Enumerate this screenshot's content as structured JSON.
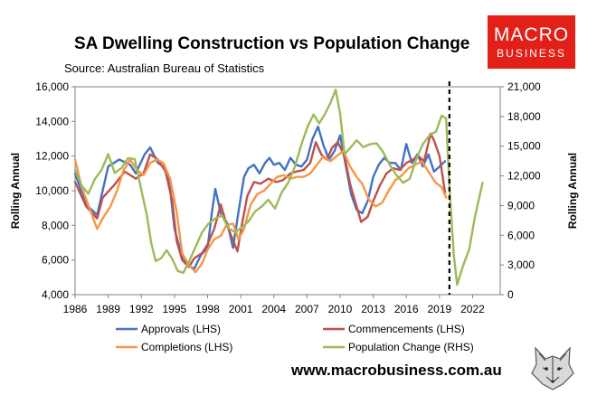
{
  "title": "SA Dwelling Construction vs Population Change",
  "subtitle": "Source: Australian Bureau of Statistics",
  "logo": {
    "line1": "MACRO",
    "line2": "BUSINESS",
    "icon": "wolf-head-icon"
  },
  "website": "www.macrobusiness.com.au",
  "colors": {
    "approvals": "#4472c4",
    "commencements": "#c0504d",
    "completions": "#f79646",
    "population": "#9bbb59",
    "logo_bg": "#e32018"
  },
  "chart_data": {
    "type": "line",
    "xlim": [
      1986,
      2024.5
    ],
    "x_ticks": [
      "1986",
      "1989",
      "1992",
      "1995",
      "1998",
      "2001",
      "2004",
      "2007",
      "2010",
      "2013",
      "2016",
      "2019",
      "2022"
    ],
    "ylabel_left": "Rolling Annual",
    "ylabel_right": "Rolling Annual",
    "ylim_left": [
      4000,
      16000
    ],
    "ylim_right": [
      0,
      21000
    ],
    "y_ticks_left": [
      "4,000",
      "6,000",
      "8,000",
      "10,000",
      "12,000",
      "14,000",
      "16,000"
    ],
    "y_ticks_right": [
      "0",
      "3,000",
      "6,000",
      "9,000",
      "12,000",
      "15,000",
      "18,000",
      "21,000"
    ],
    "vline_x": 2019.9,
    "series": [
      {
        "name": "Approvals (LHS)",
        "key": "approvals",
        "axis": "left",
        "points": [
          [
            1986,
            11000
          ],
          [
            1987,
            9200
          ],
          [
            1988,
            8600
          ],
          [
            1989,
            11400
          ],
          [
            1990,
            11800
          ],
          [
            1991,
            11500
          ],
          [
            1991.5,
            11000
          ],
          [
            1992.3,
            12100
          ],
          [
            1992.8,
            12500
          ],
          [
            1993.5,
            11600
          ],
          [
            1994,
            11400
          ],
          [
            1994.5,
            10700
          ],
          [
            1995,
            7800
          ],
          [
            1995.6,
            6400
          ],
          [
            1996.2,
            5700
          ],
          [
            1996.8,
            5500
          ],
          [
            1997.4,
            6300
          ],
          [
            1998,
            6700
          ],
          [
            1998.4,
            8800
          ],
          [
            1998.7,
            10100
          ],
          [
            1999.2,
            8700
          ],
          [
            1999.8,
            8100
          ],
          [
            2000.3,
            6700
          ],
          [
            2000.8,
            8800
          ],
          [
            2001.3,
            10800
          ],
          [
            2001.7,
            11300
          ],
          [
            2002.2,
            11500
          ],
          [
            2002.7,
            11000
          ],
          [
            2003.2,
            11600
          ],
          [
            2003.6,
            11900
          ],
          [
            2004,
            11500
          ],
          [
            2004.5,
            11600
          ],
          [
            2005,
            11200
          ],
          [
            2005.5,
            11900
          ],
          [
            2006,
            11500
          ],
          [
            2006.5,
            11400
          ],
          [
            2007,
            11800
          ],
          [
            2007.5,
            13000
          ],
          [
            2008,
            13700
          ],
          [
            2008.5,
            12600
          ],
          [
            2009,
            11800
          ],
          [
            2009.5,
            12300
          ],
          [
            2010,
            13200
          ],
          [
            2010.5,
            11500
          ],
          [
            2011,
            9800
          ],
          [
            2011.5,
            8900
          ],
          [
            2012,
            8700
          ],
          [
            2012.5,
            9400
          ],
          [
            2013,
            10800
          ],
          [
            2013.5,
            11500
          ],
          [
            2014,
            11900
          ],
          [
            2014.5,
            11600
          ],
          [
            2015,
            11600
          ],
          [
            2015.5,
            11200
          ],
          [
            2016,
            12700
          ],
          [
            2016.5,
            11600
          ],
          [
            2017,
            12100
          ],
          [
            2017.5,
            11400
          ],
          [
            2018,
            12100
          ],
          [
            2018.5,
            11100
          ],
          [
            2019,
            11400
          ],
          [
            2019.5,
            11700
          ]
        ]
      },
      {
        "name": "Commencements (LHS)",
        "key": "commencements",
        "axis": "left",
        "points": [
          [
            1986,
            10500
          ],
          [
            1987,
            9100
          ],
          [
            1988,
            8400
          ],
          [
            1988.5,
            9600
          ],
          [
            1989.5,
            10300
          ],
          [
            1990.5,
            11100
          ],
          [
            1991.5,
            10700
          ],
          [
            1992.2,
            11000
          ],
          [
            1992.8,
            12100
          ],
          [
            1993.5,
            11800
          ],
          [
            1994.2,
            11100
          ],
          [
            1994.8,
            9400
          ],
          [
            1995.2,
            7100
          ],
          [
            1995.7,
            6000
          ],
          [
            1996.3,
            5600
          ],
          [
            1996.8,
            6100
          ],
          [
            1997.5,
            6400
          ],
          [
            1998,
            6900
          ],
          [
            1998.6,
            7800
          ],
          [
            1999.2,
            9200
          ],
          [
            1999.7,
            8100
          ],
          [
            2000.2,
            7300
          ],
          [
            2000.7,
            6500
          ],
          [
            2001.1,
            8000
          ],
          [
            2001.6,
            9700
          ],
          [
            2002.2,
            10500
          ],
          [
            2002.8,
            10400
          ],
          [
            2003.5,
            10700
          ],
          [
            2004.2,
            10500
          ],
          [
            2004.8,
            10600
          ],
          [
            2005.5,
            11000
          ],
          [
            2006,
            11100
          ],
          [
            2006.7,
            11200
          ],
          [
            2007.3,
            11600
          ],
          [
            2007.8,
            12800
          ],
          [
            2008.3,
            12100
          ],
          [
            2008.8,
            11800
          ],
          [
            2009.3,
            12500
          ],
          [
            2009.8,
            12800
          ],
          [
            2010.4,
            12000
          ],
          [
            2010.9,
            10400
          ],
          [
            2011.4,
            9300
          ],
          [
            2011.9,
            8200
          ],
          [
            2012.5,
            8500
          ],
          [
            2013,
            9400
          ],
          [
            2013.6,
            10300
          ],
          [
            2014.2,
            11000
          ],
          [
            2014.8,
            11300
          ],
          [
            2015.4,
            11200
          ],
          [
            2016,
            11600
          ],
          [
            2016.6,
            11800
          ],
          [
            2017.1,
            12000
          ],
          [
            2017.6,
            11700
          ],
          [
            2018.2,
            13300
          ],
          [
            2018.5,
            12900
          ],
          [
            2019,
            12000
          ],
          [
            2019.5,
            9900
          ]
        ]
      },
      {
        "name": "Completions (LHS)",
        "key": "completions",
        "axis": "left",
        "points": [
          [
            1986,
            11800
          ],
          [
            1986.6,
            10200
          ],
          [
            1987.3,
            9000
          ],
          [
            1988,
            7800
          ],
          [
            1988.5,
            8400
          ],
          [
            1989.2,
            9100
          ],
          [
            1989.8,
            10000
          ],
          [
            1990.4,
            11200
          ],
          [
            1991,
            11800
          ],
          [
            1991.6,
            11200
          ],
          [
            1992.2,
            10900
          ],
          [
            1992.8,
            11600
          ],
          [
            1993.4,
            11800
          ],
          [
            1994,
            11600
          ],
          [
            1994.6,
            10700
          ],
          [
            1995.2,
            8800
          ],
          [
            1995.7,
            6400
          ],
          [
            1996.3,
            5700
          ],
          [
            1996.9,
            5300
          ],
          [
            1997.5,
            5800
          ],
          [
            1998,
            6600
          ],
          [
            1998.6,
            7200
          ],
          [
            1999.2,
            7400
          ],
          [
            1999.7,
            8000
          ],
          [
            2000.3,
            8100
          ],
          [
            2000.8,
            7200
          ],
          [
            2001.3,
            7800
          ],
          [
            2001.9,
            9200
          ],
          [
            2002.5,
            9800
          ],
          [
            2003.1,
            10000
          ],
          [
            2003.7,
            10400
          ],
          [
            2004.3,
            10800
          ],
          [
            2004.9,
            10900
          ],
          [
            2005.5,
            10700
          ],
          [
            2006.1,
            10800
          ],
          [
            2006.7,
            10800
          ],
          [
            2007.3,
            11000
          ],
          [
            2007.9,
            11500
          ],
          [
            2008.5,
            12000
          ],
          [
            2009.1,
            11700
          ],
          [
            2009.7,
            12000
          ],
          [
            2010.3,
            12300
          ],
          [
            2010.9,
            11400
          ],
          [
            2011.5,
            10800
          ],
          [
            2012,
            10400
          ],
          [
            2012.6,
            9500
          ],
          [
            2013.2,
            9100
          ],
          [
            2013.8,
            9300
          ],
          [
            2014.4,
            10000
          ],
          [
            2015,
            10600
          ],
          [
            2015.6,
            10900
          ],
          [
            2016.2,
            11300
          ],
          [
            2016.8,
            11500
          ],
          [
            2017.4,
            11700
          ],
          [
            2018,
            11100
          ],
          [
            2018.6,
            10500
          ],
          [
            2019.2,
            10200
          ],
          [
            2019.6,
            9600
          ]
        ]
      },
      {
        "name": "Population Change (RHS)",
        "key": "population",
        "axis": "right",
        "points": [
          [
            1986,
            12600
          ],
          [
            1986.6,
            11000
          ],
          [
            1987.2,
            10200
          ],
          [
            1987.8,
            11700
          ],
          [
            1988.4,
            12600
          ],
          [
            1989,
            14200
          ],
          [
            1989.6,
            12300
          ],
          [
            1990.2,
            12800
          ],
          [
            1990.8,
            13800
          ],
          [
            1991.4,
            13700
          ],
          [
            1992,
            10600
          ],
          [
            1992.5,
            8000
          ],
          [
            1992.9,
            5200
          ],
          [
            1993.3,
            3400
          ],
          [
            1993.8,
            3700
          ],
          [
            1994.3,
            4500
          ],
          [
            1994.8,
            3600
          ],
          [
            1995.3,
            2400
          ],
          [
            1995.8,
            2200
          ],
          [
            1996.3,
            3300
          ],
          [
            1996.9,
            4800
          ],
          [
            1997.5,
            6300
          ],
          [
            1998.1,
            7200
          ],
          [
            1998.7,
            7700
          ],
          [
            1999.3,
            8000
          ],
          [
            1999.9,
            6700
          ],
          [
            2000.5,
            6300
          ],
          [
            2001.1,
            6800
          ],
          [
            2001.7,
            7400
          ],
          [
            2002.3,
            8400
          ],
          [
            2002.9,
            8900
          ],
          [
            2003.5,
            9600
          ],
          [
            2004.1,
            8700
          ],
          [
            2004.7,
            10300
          ],
          [
            2005.3,
            11300
          ],
          [
            2005.9,
            12900
          ],
          [
            2006.5,
            15200
          ],
          [
            2007.1,
            17100
          ],
          [
            2007.6,
            18200
          ],
          [
            2008.1,
            17300
          ],
          [
            2008.6,
            18200
          ],
          [
            2009.1,
            19300
          ],
          [
            2009.6,
            20700
          ],
          [
            2010,
            18300
          ],
          [
            2010.4,
            14200
          ],
          [
            2010.9,
            14800
          ],
          [
            2011.5,
            15600
          ],
          [
            2012.1,
            14900
          ],
          [
            2012.7,
            15200
          ],
          [
            2013.3,
            15300
          ],
          [
            2013.9,
            14400
          ],
          [
            2014.5,
            13100
          ],
          [
            2015.1,
            12100
          ],
          [
            2015.7,
            11300
          ],
          [
            2016.3,
            11700
          ],
          [
            2016.9,
            13700
          ],
          [
            2017.5,
            15200
          ],
          [
            2018.1,
            16100
          ],
          [
            2018.7,
            16500
          ],
          [
            2019.2,
            18100
          ],
          [
            2019.6,
            17800
          ],
          [
            2019.9,
            11000
          ],
          [
            2020.3,
            4000
          ],
          [
            2020.6,
            1000
          ],
          [
            2021.1,
            2800
          ],
          [
            2021.7,
            4600
          ],
          [
            2022.2,
            7800
          ],
          [
            2022.9,
            11300
          ]
        ]
      }
    ],
    "legend": [
      {
        "label": "Approvals (LHS)",
        "key": "approvals"
      },
      {
        "label": "Commencements (LHS)",
        "key": "commencements"
      },
      {
        "label": "Completions (LHS)",
        "key": "completions"
      },
      {
        "label": "Population Change (RHS)",
        "key": "population"
      }
    ],
    "legend_position": "bottom"
  }
}
